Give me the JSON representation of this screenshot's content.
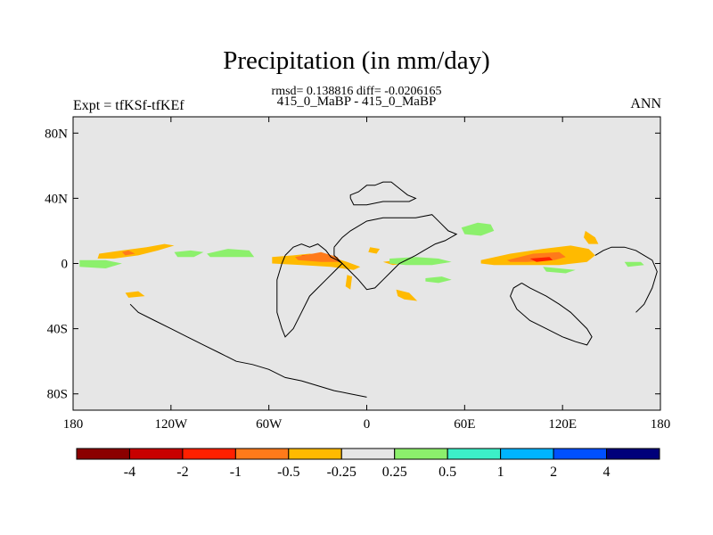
{
  "chart_data": {
    "type": "heatmap",
    "title": "Precipitation (in mm/day)",
    "subtitle": "rmsd= 0.138816 diff= -0.0206165",
    "center_label": "415_0_MaBP - 415_0_MaBP",
    "left_label": "Expt = tfKSf-tfKEf",
    "right_label": "ANN",
    "xlim": [
      -180,
      180
    ],
    "ylim": [
      -90,
      90
    ],
    "x_ticks": [
      {
        "value": -180,
        "label": "180"
      },
      {
        "value": -120,
        "label": "120W"
      },
      {
        "value": -60,
        "label": "60W"
      },
      {
        "value": 0,
        "label": "0"
      },
      {
        "value": 60,
        "label": "60E"
      },
      {
        "value": 120,
        "label": "120E"
      },
      {
        "value": 180,
        "label": "180"
      }
    ],
    "y_ticks": [
      {
        "value": 80,
        "label": "80N"
      },
      {
        "value": 40,
        "label": "40N"
      },
      {
        "value": 0,
        "label": "0"
      },
      {
        "value": -40,
        "label": "40S"
      },
      {
        "value": -80,
        "label": "80S"
      }
    ],
    "colorbar": {
      "colors": [
        "#8b0000",
        "#c80000",
        "#ff2000",
        "#ff7a1a",
        "#ffba00",
        "#e6e6e6",
        "#8cf06c",
        "#3cf0c8",
        "#00b4ff",
        "#0050ff",
        "#00007a"
      ],
      "labels": [
        "-4",
        "-2",
        "-1",
        "-0.5",
        "-0.25",
        "0.25",
        "0.5",
        "1",
        "2",
        "4"
      ]
    },
    "anomaly_regions": [
      {
        "name": "central-pacific-north-band",
        "level": -0.25,
        "color": "#ffba00",
        "points": [
          [
            -164,
            6
          ],
          [
            -150,
            8
          ],
          [
            -135,
            10
          ],
          [
            -124,
            12
          ],
          [
            -118,
            11
          ],
          [
            -128,
            8
          ],
          [
            -140,
            5
          ],
          [
            -155,
            3
          ],
          [
            -165,
            3
          ]
        ]
      },
      {
        "name": "central-pacific-core",
        "level": -0.5,
        "color": "#ff7a1a",
        "points": [
          [
            -150,
            7
          ],
          [
            -146,
            8
          ],
          [
            -142,
            6
          ],
          [
            -148,
            5
          ]
        ]
      },
      {
        "name": "east-pacific-wet-1",
        "level": 0.25,
        "color": "#8cf06c",
        "points": [
          [
            -118,
            7
          ],
          [
            -108,
            8
          ],
          [
            -100,
            7
          ],
          [
            -106,
            4
          ],
          [
            -116,
            4
          ]
        ]
      },
      {
        "name": "east-pacific-wet-2",
        "level": 0.25,
        "color": "#8cf06c",
        "points": [
          [
            -98,
            6
          ],
          [
            -85,
            9
          ],
          [
            -72,
            8
          ],
          [
            -69,
            4
          ],
          [
            -80,
            4
          ],
          [
            -96,
            4
          ]
        ]
      },
      {
        "name": "east-pacific-wet-3",
        "level": 0.25,
        "color": "#8cf06c",
        "points": [
          [
            -176,
            2
          ],
          [
            -160,
            2
          ],
          [
            -150,
            0
          ],
          [
            -160,
            -3
          ],
          [
            -176,
            -2
          ]
        ]
      },
      {
        "name": "central-atlantic-band",
        "level": -0.25,
        "color": "#ffba00",
        "points": [
          [
            -58,
            4
          ],
          [
            -45,
            5
          ],
          [
            -35,
            6
          ],
          [
            -25,
            5
          ],
          [
            -12,
            1
          ],
          [
            -4,
            -2
          ],
          [
            -8,
            -4
          ],
          [
            -22,
            -2
          ],
          [
            -40,
            -1
          ],
          [
            -58,
            0
          ]
        ]
      },
      {
        "name": "central-atlantic-core",
        "level": -1,
        "color": "#ff2000",
        "points": [
          [
            -40,
            5
          ],
          [
            -30,
            6
          ],
          [
            -22,
            4
          ],
          [
            -32,
            2
          ],
          [
            -38,
            2
          ]
        ]
      },
      {
        "name": "atlantic-core-edge",
        "level": -0.5,
        "color": "#ff7a1a",
        "points": [
          [
            -44,
            4
          ],
          [
            -28,
            7
          ],
          [
            -18,
            4
          ],
          [
            -16,
            1
          ],
          [
            -28,
            1
          ],
          [
            -42,
            2
          ]
        ]
      },
      {
        "name": "north-atlantic-patch",
        "level": -0.25,
        "color": "#ffba00",
        "points": [
          [
            2,
            10
          ],
          [
            8,
            9
          ],
          [
            6,
            6
          ],
          [
            1,
            7
          ]
        ]
      },
      {
        "name": "africa-patch",
        "level": -0.25,
        "color": "#ffba00",
        "points": [
          [
            10,
            1
          ],
          [
            18,
            2
          ],
          [
            24,
            0
          ],
          [
            16,
            -1
          ]
        ]
      },
      {
        "name": "africa-wet-band",
        "level": 0.25,
        "color": "#8cf06c",
        "points": [
          [
            14,
            3
          ],
          [
            30,
            4
          ],
          [
            44,
            3
          ],
          [
            52,
            1
          ],
          [
            40,
            -1
          ],
          [
            24,
            -1
          ],
          [
            14,
            0
          ]
        ]
      },
      {
        "name": "indian-wet-patch",
        "level": 0.25,
        "color": "#8cf06c",
        "points": [
          [
            36,
            -9
          ],
          [
            46,
            -8
          ],
          [
            52,
            -10
          ],
          [
            44,
            -12
          ],
          [
            36,
            -11
          ]
        ]
      },
      {
        "name": "south-atlantic-patch",
        "level": -0.25,
        "color": "#ffba00",
        "points": [
          [
            18,
            -16
          ],
          [
            26,
            -18
          ],
          [
            31,
            -23
          ],
          [
            23,
            -22
          ],
          [
            19,
            -20
          ]
        ]
      },
      {
        "name": "brazil-patch",
        "level": -0.25,
        "color": "#ffba00",
        "points": [
          [
            -12,
            -7
          ],
          [
            -9,
            -8
          ],
          [
            -10,
            -16
          ],
          [
            -13,
            -14
          ]
        ]
      },
      {
        "name": "south-pacific-patch",
        "level": -0.25,
        "color": "#ffba00",
        "points": [
          [
            -148,
            -18
          ],
          [
            -140,
            -17
          ],
          [
            -136,
            -20
          ],
          [
            -146,
            -21
          ]
        ]
      },
      {
        "name": "india-wet-patch",
        "level": 0.25,
        "color": "#8cf06c",
        "points": [
          [
            58,
            22
          ],
          [
            68,
            25
          ],
          [
            76,
            24
          ],
          [
            78,
            20
          ],
          [
            70,
            17
          ],
          [
            60,
            18
          ]
        ]
      },
      {
        "name": "warm-pool-band",
        "level": -0.25,
        "color": "#ffba00",
        "points": [
          [
            70,
            2
          ],
          [
            88,
            6
          ],
          [
            108,
            9
          ],
          [
            125,
            11
          ],
          [
            136,
            9
          ],
          [
            140,
            5
          ],
          [
            135,
            1
          ],
          [
            118,
            -1
          ],
          [
            95,
            -1
          ],
          [
            78,
            -1
          ],
          [
            70,
            0
          ]
        ]
      },
      {
        "name": "warm-pool-core",
        "level": -0.5,
        "color": "#ff7a1a",
        "points": [
          [
            86,
            2
          ],
          [
            102,
            6
          ],
          [
            118,
            7
          ],
          [
            122,
            4
          ],
          [
            115,
            2
          ],
          [
            98,
            1
          ],
          [
            88,
            1
          ]
        ]
      },
      {
        "name": "warm-pool-red",
        "level": -1,
        "color": "#ff2000",
        "points": [
          [
            100,
            3
          ],
          [
            112,
            4
          ],
          [
            114,
            2
          ],
          [
            104,
            1
          ]
        ]
      },
      {
        "name": "philippine-patch",
        "level": -0.25,
        "color": "#ffba00",
        "points": [
          [
            134,
            20
          ],
          [
            140,
            16
          ],
          [
            142,
            12
          ],
          [
            136,
            12
          ],
          [
            133,
            16
          ]
        ]
      },
      {
        "name": "maritime-wet",
        "level": 0.25,
        "color": "#8cf06c",
        "points": [
          [
            108,
            -2
          ],
          [
            118,
            -3
          ],
          [
            128,
            -4
          ],
          [
            122,
            -6
          ],
          [
            110,
            -5
          ]
        ]
      },
      {
        "name": "east-indian-wet",
        "level": 0.25,
        "color": "#8cf06c",
        "points": [
          [
            158,
            1
          ],
          [
            168,
            1
          ],
          [
            170,
            -1
          ],
          [
            160,
            -2
          ]
        ]
      }
    ],
    "coastlines": [
      {
        "name": "north-continent-1",
        "points": [
          [
            -10,
            40
          ],
          [
            -10,
            42
          ],
          [
            -5,
            44
          ],
          [
            0,
            48
          ],
          [
            5,
            48
          ],
          [
            10,
            50
          ],
          [
            15,
            50
          ],
          [
            20,
            46
          ],
          [
            25,
            42
          ],
          [
            30,
            40
          ],
          [
            26,
            38
          ],
          [
            18,
            38
          ],
          [
            10,
            38
          ],
          [
            0,
            36
          ],
          [
            -8,
            36
          ],
          [
            -10,
            40
          ]
        ]
      },
      {
        "name": "north-continent-2",
        "points": [
          [
            -20,
            10
          ],
          [
            -15,
            16
          ],
          [
            -10,
            20
          ],
          [
            0,
            26
          ],
          [
            10,
            28
          ],
          [
            20,
            28
          ],
          [
            30,
            28
          ],
          [
            40,
            30
          ],
          [
            45,
            25
          ],
          [
            50,
            20
          ],
          [
            55,
            18
          ],
          [
            48,
            14
          ],
          [
            42,
            12
          ],
          [
            35,
            8
          ],
          [
            30,
            5
          ],
          [
            20,
            0
          ],
          [
            15,
            -5
          ],
          [
            10,
            -10
          ],
          [
            5,
            -15
          ],
          [
            0,
            -16
          ],
          [
            -5,
            -10
          ],
          [
            -10,
            -5
          ],
          [
            -15,
            0
          ],
          [
            -20,
            5
          ],
          [
            -20,
            10
          ]
        ]
      },
      {
        "name": "north-continent-3",
        "points": [
          [
            -50,
            5
          ],
          [
            -45,
            10
          ],
          [
            -40,
            12
          ],
          [
            -35,
            10
          ],
          [
            -30,
            12
          ],
          [
            -25,
            8
          ],
          [
            -22,
            4
          ],
          [
            -18,
            2
          ],
          [
            -15,
            0
          ],
          [
            -20,
            -5
          ],
          [
            -25,
            -10
          ],
          [
            -30,
            -15
          ],
          [
            -35,
            -20
          ],
          [
            -40,
            -30
          ],
          [
            -45,
            -40
          ],
          [
            -50,
            -45
          ],
          [
            -52,
            -40
          ],
          [
            -55,
            -30
          ],
          [
            -55,
            -20
          ],
          [
            -55,
            -10
          ],
          [
            -52,
            0
          ],
          [
            -50,
            5
          ]
        ]
      },
      {
        "name": "east-continent",
        "points": [
          [
            95,
            -12
          ],
          [
            100,
            -15
          ],
          [
            110,
            -20
          ],
          [
            118,
            -25
          ],
          [
            125,
            -30
          ],
          [
            130,
            -35
          ],
          [
            135,
            -40
          ],
          [
            138,
            -45
          ],
          [
            135,
            -50
          ],
          [
            128,
            -48
          ],
          [
            120,
            -45
          ],
          [
            110,
            -40
          ],
          [
            100,
            -35
          ],
          [
            92,
            -28
          ],
          [
            88,
            -20
          ],
          [
            90,
            -15
          ],
          [
            95,
            -12
          ]
        ]
      },
      {
        "name": "south-continent",
        "points": [
          [
            -145,
            -25
          ],
          [
            -140,
            -30
          ],
          [
            -130,
            -35
          ],
          [
            -120,
            -40
          ],
          [
            -110,
            -45
          ],
          [
            -100,
            -50
          ],
          [
            -90,
            -55
          ],
          [
            -80,
            -60
          ],
          [
            -70,
            -62
          ],
          [
            -60,
            -65
          ],
          [
            -50,
            -70
          ],
          [
            -40,
            -72
          ],
          [
            -30,
            -75
          ],
          [
            -20,
            -78
          ],
          [
            -10,
            -80
          ],
          [
            0,
            -82
          ]
        ]
      },
      {
        "name": "far-east-island",
        "points": [
          [
            140,
            5
          ],
          [
            145,
            8
          ],
          [
            150,
            10
          ],
          [
            158,
            10
          ],
          [
            165,
            8
          ],
          [
            170,
            5
          ],
          [
            175,
            2
          ],
          [
            178,
            -5
          ],
          [
            175,
            -15
          ],
          [
            170,
            -25
          ],
          [
            165,
            -30
          ]
        ]
      }
    ]
  }
}
